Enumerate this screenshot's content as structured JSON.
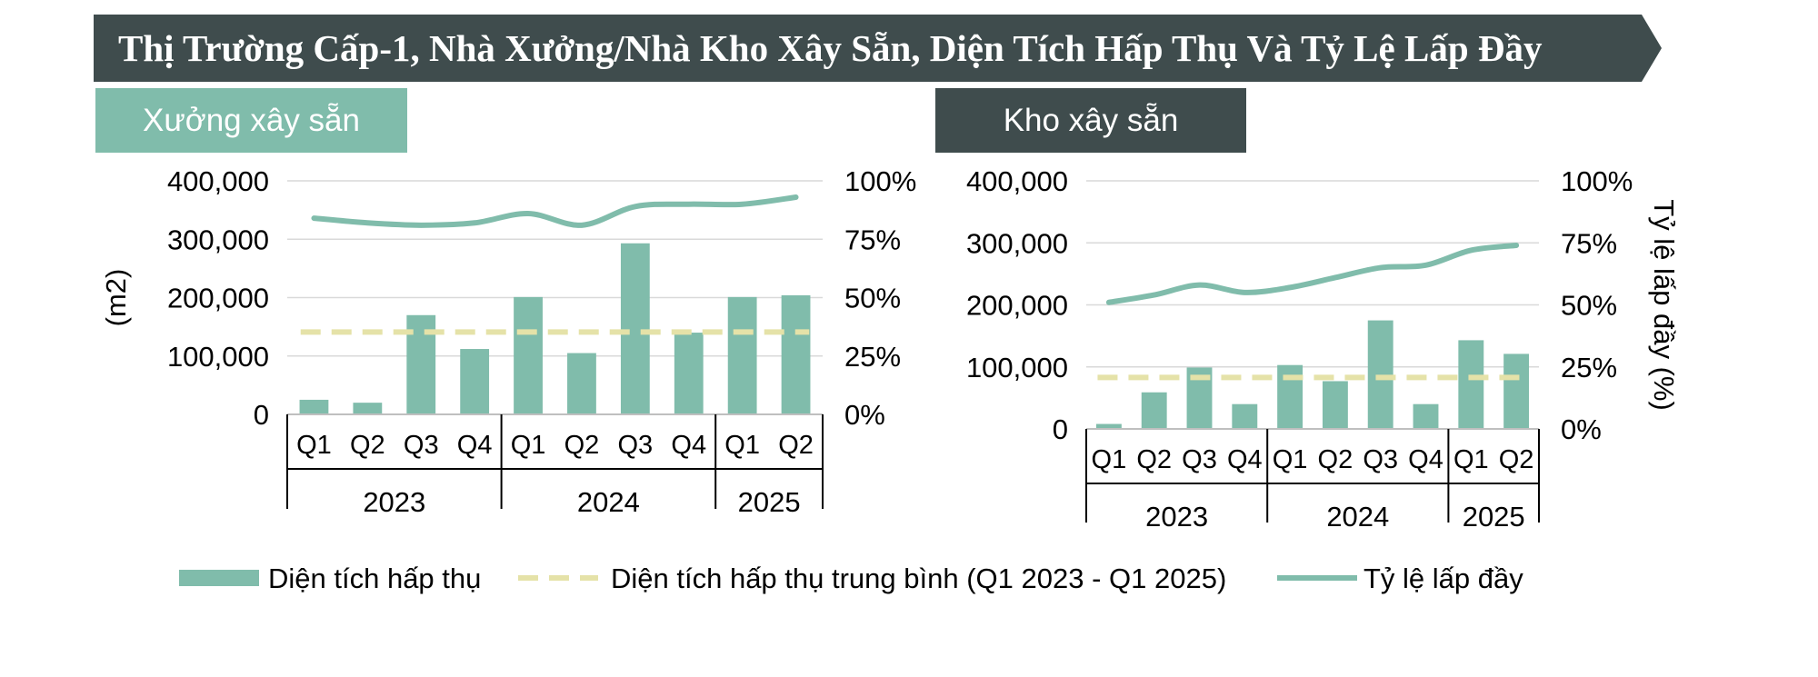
{
  "title": "Thị Trường Cấp-1, Nhà Xưởng/Nhà Kho Xây Sẵn, Diện Tích Hấp Thụ Và Tỷ Lệ Lấp Đầy",
  "colors": {
    "banner": "#3f4c4d",
    "bar": "#80bcab",
    "line": "#80bcab",
    "dashed": "#e5e2a8",
    "tag_left": "#80bcab",
    "tag_right": "#3f4c4d"
  },
  "legend": {
    "bar": "Diện tích hấp thụ",
    "avg": "Diện tích hấp thụ trung bình (Q1 2023 - Q1 2025)",
    "rate": "Tỷ lệ lấp đầy"
  },
  "chart_data": [
    {
      "type": "bar",
      "panel_label": "Xưởng xây sẵn",
      "categories": [
        "Q1",
        "Q2",
        "Q3",
        "Q4",
        "Q1",
        "Q2",
        "Q3",
        "Q4",
        "Q1",
        "Q2"
      ],
      "groups": [
        {
          "label": "2023",
          "size": 4
        },
        {
          "label": "2024",
          "size": 4
        },
        {
          "label": "2025",
          "size": 2
        }
      ],
      "series": [
        {
          "name": "Diện tích hấp thụ",
          "kind": "bar",
          "axis": "left",
          "values": [
            25000,
            20000,
            170000,
            112000,
            201000,
            105000,
            293000,
            140000,
            201000,
            204000
          ]
        },
        {
          "name": "Diện tích hấp thụ trung bình (Q1 2023 - Q1 2025)",
          "kind": "dashed-line",
          "axis": "left",
          "values": [
            141000,
            141000,
            141000,
            141000,
            141000,
            141000,
            141000,
            141000,
            141000,
            141000
          ]
        },
        {
          "name": "Tỷ lệ lấp đầy",
          "kind": "line",
          "axis": "right",
          "values": [
            84,
            82,
            81,
            82,
            86,
            81,
            89,
            90,
            90,
            93
          ]
        }
      ],
      "ylabel": "(m2)",
      "y2label": "",
      "ylim": [
        0,
        400000
      ],
      "y2lim": [
        0,
        100
      ],
      "yticks": [
        "0",
        "100,000",
        "200,000",
        "300,000",
        "400,000"
      ],
      "y2ticks": [
        "0%",
        "25%",
        "50%",
        "75%",
        "100%"
      ],
      "grid": true
    },
    {
      "type": "bar",
      "panel_label": "Kho xây sẵn",
      "categories": [
        "Q1",
        "Q2",
        "Q3",
        "Q4",
        "Q1",
        "Q2",
        "Q3",
        "Q4",
        "Q1",
        "Q2"
      ],
      "groups": [
        {
          "label": "2023",
          "size": 4
        },
        {
          "label": "2024",
          "size": 4
        },
        {
          "label": "2025",
          "size": 2
        }
      ],
      "series": [
        {
          "name": "Diện tích hấp thụ",
          "kind": "bar",
          "axis": "left",
          "values": [
            8000,
            59000,
            99000,
            40000,
            103000,
            77000,
            175000,
            40000,
            143000,
            121000
          ]
        },
        {
          "name": "Diện tích hấp thụ trung bình (Q1 2023 - Q1 2025)",
          "kind": "dashed-line",
          "axis": "left",
          "values": [
            83000,
            83000,
            83000,
            83000,
            83000,
            83000,
            83000,
            83000,
            83000,
            83000
          ]
        },
        {
          "name": "Tỷ lệ lấp đầy",
          "kind": "line",
          "axis": "right",
          "values": [
            51,
            54,
            58,
            55,
            57,
            61,
            65,
            66,
            72,
            74
          ]
        }
      ],
      "ylabel": "",
      "y2label": "Tỷ lệ lấp đầy (%)",
      "ylim": [
        0,
        400000
      ],
      "y2lim": [
        0,
        100
      ],
      "yticks": [
        "0",
        "100,000",
        "200,000",
        "300,000",
        "400,000"
      ],
      "y2ticks": [
        "0%",
        "25%",
        "50%",
        "75%",
        "100%"
      ],
      "grid": true
    }
  ]
}
